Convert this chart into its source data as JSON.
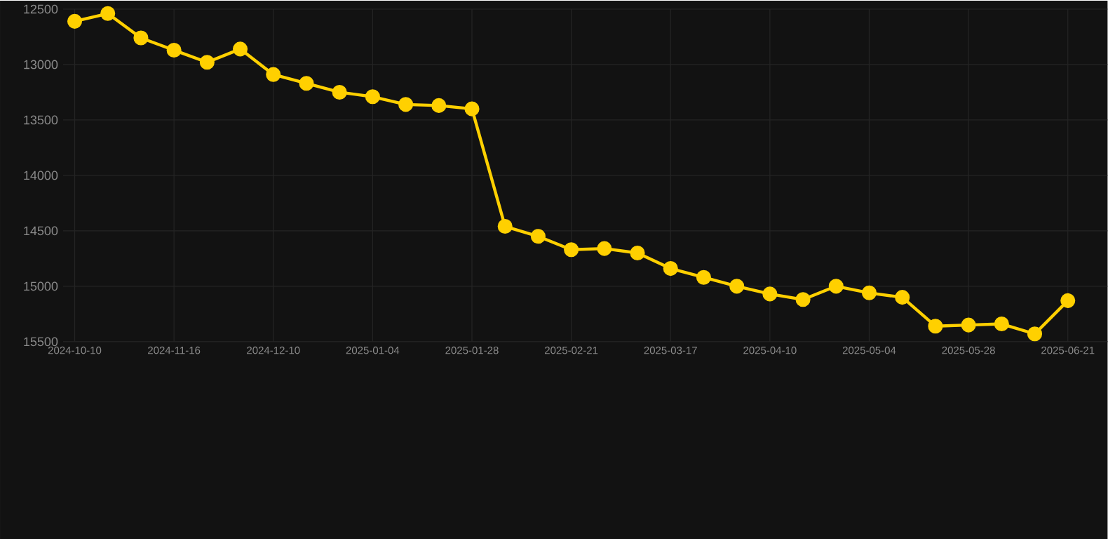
{
  "chart_data": {
    "type": "line",
    "categories": [
      "2024-10-10",
      null,
      null,
      "2024-11-16",
      null,
      null,
      "2024-12-10",
      null,
      null,
      "2025-01-04",
      null,
      null,
      "2025-01-28",
      null,
      null,
      "2025-02-21",
      null,
      null,
      "2025-03-17",
      null,
      null,
      "2025-04-10",
      null,
      null,
      "2025-05-04",
      null,
      null,
      "2025-05-28",
      null,
      null,
      "2025-06-21"
    ],
    "series": [
      {
        "color": "#ffd000",
        "values": [
          12610,
          12540,
          12760,
          12870,
          12980,
          12860,
          13090,
          13170,
          13250,
          13290,
          13360,
          13370,
          13400,
          14460,
          14550,
          14670,
          14660,
          14700,
          14840,
          14920,
          15000,
          15070,
          15120,
          15000,
          15060,
          15100,
          15360,
          15350,
          15340,
          15430,
          15130
        ]
      }
    ],
    "ylim": [
      15500,
      12500
    ],
    "yticks": [
      12500,
      13000,
      13500,
      14000,
      14500,
      15000,
      15500
    ],
    "grid": true,
    "marker": "circle",
    "line_style": "solid",
    "legend": false
  }
}
